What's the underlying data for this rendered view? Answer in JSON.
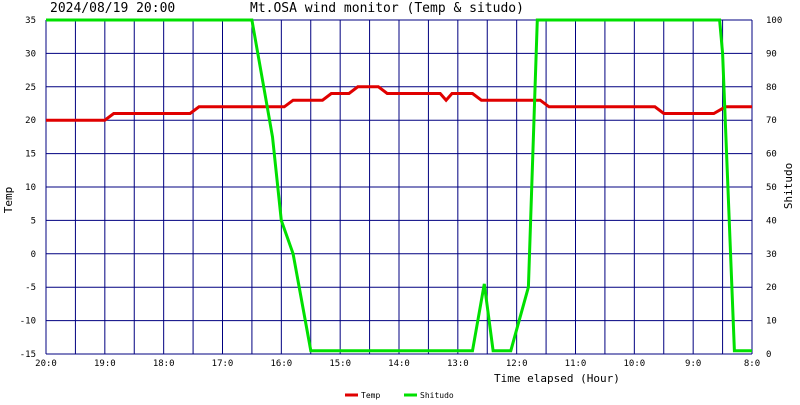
{
  "header": {
    "timestamp": "2024/08/19 20:00",
    "title": "Mt.OSA wind monitor (Temp & situdo)"
  },
  "colors": {
    "background": "#ffffff",
    "grid": "#000080",
    "temp": "#e00000",
    "shitudo": "#00e000"
  },
  "chart_data": {
    "type": "line",
    "title": "Mt.OSA wind monitor (Temp & situdo)",
    "xlabel": "Time elapsed (Hour)",
    "ylabel_left": "Temp",
    "ylabel_right": "Shitudo",
    "x_range": [
      0,
      12
    ],
    "x_ticks": [
      {
        "x": 0,
        "label": "20:0"
      },
      {
        "x": 1,
        "label": "19:0"
      },
      {
        "x": 2,
        "label": "18:0"
      },
      {
        "x": 3,
        "label": "17:0"
      },
      {
        "x": 4,
        "label": "16:0"
      },
      {
        "x": 5,
        "label": "15:0"
      },
      {
        "x": 6,
        "label": "14:0"
      },
      {
        "x": 7,
        "label": "13:0"
      },
      {
        "x": 8,
        "label": "12:0"
      },
      {
        "x": 9,
        "label": "11:0"
      },
      {
        "x": 10,
        "label": "10:0"
      },
      {
        "x": 11,
        "label": "9:0"
      },
      {
        "x": 12,
        "label": "8:0"
      }
    ],
    "y_left": {
      "min": -15,
      "max": 35,
      "ticks": [
        35,
        30,
        25,
        20,
        15,
        10,
        5,
        0,
        -5,
        -10,
        -15
      ]
    },
    "y_right": {
      "min": 0,
      "max": 100,
      "ticks": [
        100,
        90,
        80,
        70,
        60,
        50,
        40,
        30,
        20,
        10,
        0
      ]
    },
    "grid": true,
    "legend_position": "bottom-center",
    "series": [
      {
        "name": "Temp",
        "axis": "left",
        "points": [
          [
            0.0,
            20
          ],
          [
            1.0,
            20
          ],
          [
            1.15,
            21
          ],
          [
            2.45,
            21
          ],
          [
            2.6,
            22
          ],
          [
            4.05,
            22
          ],
          [
            4.2,
            23
          ],
          [
            4.7,
            23
          ],
          [
            4.85,
            24
          ],
          [
            5.15,
            24
          ],
          [
            5.3,
            25
          ],
          [
            5.65,
            25
          ],
          [
            5.8,
            24
          ],
          [
            6.7,
            24
          ],
          [
            6.8,
            23
          ],
          [
            6.9,
            24
          ],
          [
            7.25,
            24
          ],
          [
            7.4,
            23
          ],
          [
            8.4,
            23
          ],
          [
            8.55,
            22
          ],
          [
            10.35,
            22
          ],
          [
            10.5,
            21
          ],
          [
            11.35,
            21
          ],
          [
            11.55,
            22
          ],
          [
            12.0,
            22
          ]
        ]
      },
      {
        "name": "Shitudo",
        "axis": "right",
        "points": [
          [
            0.0,
            100
          ],
          [
            3.5,
            100
          ],
          [
            3.7,
            80
          ],
          [
            3.85,
            65
          ],
          [
            4.0,
            40
          ],
          [
            4.2,
            30
          ],
          [
            4.5,
            1
          ],
          [
            7.25,
            1
          ],
          [
            7.45,
            21
          ],
          [
            7.6,
            1
          ],
          [
            7.9,
            1
          ],
          [
            8.2,
            20
          ],
          [
            8.35,
            100
          ],
          [
            11.45,
            100
          ],
          [
            11.5,
            90
          ],
          [
            11.7,
            1
          ],
          [
            12.0,
            1
          ]
        ]
      }
    ]
  }
}
